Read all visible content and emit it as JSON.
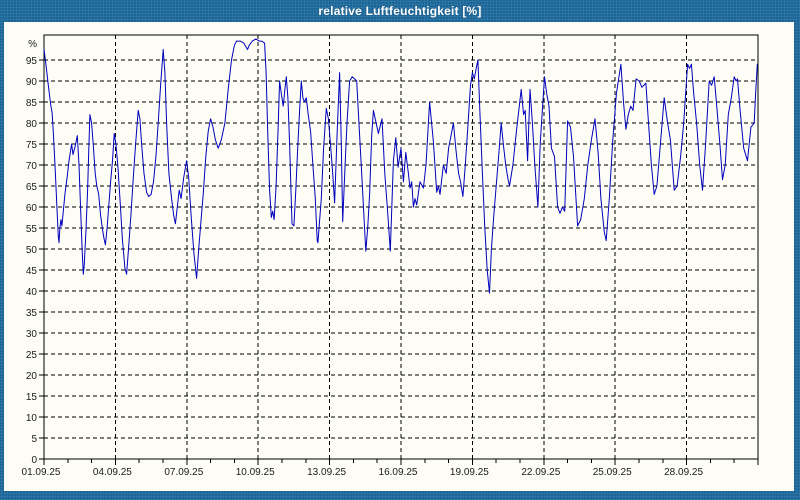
{
  "window": {
    "title": "relative Luftfeuchtigkeit [%]"
  },
  "colors": {
    "titlebar": "#1e6b9f",
    "title_text": "#ffffff",
    "content_background": "#fdfdf6",
    "series_line": "#0000bd",
    "gridline": "#000000",
    "frame": "#000000",
    "axis_text": "#1a1a1a"
  },
  "chart_data": {
    "type": "line",
    "title": "relative Luftfeuchtigkeit [%]",
    "xlabel": "",
    "ylabel": "%",
    "ylim": [
      0,
      100
    ],
    "y_ticks": [
      0,
      5,
      10,
      15,
      20,
      25,
      30,
      35,
      40,
      45,
      50,
      55,
      60,
      65,
      70,
      75,
      80,
      85,
      90,
      95
    ],
    "y_unit_label": "%",
    "grid": "dashed",
    "legend": "none",
    "x_range_days": [
      0,
      30
    ],
    "x_tick_days": [
      0,
      3,
      6,
      9,
      12,
      15,
      18,
      21,
      24,
      27
    ],
    "x_tick_labels": [
      "01.09.25",
      "04.09.25",
      "07.09.25",
      "10.09.25",
      "13.09.25",
      "16.09.25",
      "19.09.25",
      "22.09.25",
      "25.09.25",
      "28.09.25"
    ],
    "series": [
      {
        "name": "relative Luftfeuchtigkeit",
        "unit": "%",
        "points": [
          [
            0,
            97.5
          ],
          [
            0.08,
            94
          ],
          [
            0.18,
            89
          ],
          [
            0.29,
            84
          ],
          [
            0.34,
            82.5
          ],
          [
            0.4,
            77
          ],
          [
            0.47,
            69
          ],
          [
            0.54,
            60
          ],
          [
            0.6,
            53
          ],
          [
            0.63,
            51.5
          ],
          [
            0.67,
            55
          ],
          [
            0.71,
            57
          ],
          [
            0.75,
            55.5
          ],
          [
            0.81,
            59
          ],
          [
            0.88,
            63
          ],
          [
            0.97,
            67
          ],
          [
            1.05,
            71
          ],
          [
            1.16,
            75
          ],
          [
            1.22,
            72.5
          ],
          [
            1.31,
            74.5
          ],
          [
            1.4,
            77
          ],
          [
            1.47,
            70
          ],
          [
            1.54,
            59
          ],
          [
            1.6,
            50
          ],
          [
            1.65,
            44
          ],
          [
            1.69,
            46
          ],
          [
            1.76,
            54
          ],
          [
            1.83,
            64
          ],
          [
            1.88,
            73
          ],
          [
            1.93,
            82
          ],
          [
            2,
            80
          ],
          [
            2.08,
            74
          ],
          [
            2.15,
            68
          ],
          [
            2.22,
            65
          ],
          [
            2.3,
            63
          ],
          [
            2.38,
            58
          ],
          [
            2.45,
            55
          ],
          [
            2.52,
            52.5
          ],
          [
            2.58,
            51
          ],
          [
            2.65,
            55
          ],
          [
            2.72,
            60
          ],
          [
            2.8,
            66
          ],
          [
            2.88,
            71
          ],
          [
            2.95,
            77.5
          ],
          [
            3.02,
            75
          ],
          [
            3.1,
            70
          ],
          [
            3.2,
            61
          ],
          [
            3.3,
            52
          ],
          [
            3.4,
            45.5
          ],
          [
            3.47,
            44
          ],
          [
            3.55,
            50
          ],
          [
            3.65,
            58
          ],
          [
            3.75,
            67
          ],
          [
            3.85,
            75
          ],
          [
            3.96,
            83
          ],
          [
            4.03,
            81
          ],
          [
            4.1,
            75
          ],
          [
            4.2,
            68
          ],
          [
            4.31,
            63.5
          ],
          [
            4.4,
            62.5
          ],
          [
            4.5,
            63
          ],
          [
            4.6,
            66
          ],
          [
            4.7,
            72
          ],
          [
            4.8,
            80
          ],
          [
            4.9,
            89
          ],
          [
            5.01,
            97.5
          ],
          [
            5.08,
            92
          ],
          [
            5.15,
            80
          ],
          [
            5.25,
            68
          ],
          [
            5.36,
            62
          ],
          [
            5.45,
            58
          ],
          [
            5.52,
            56
          ],
          [
            5.6,
            60
          ],
          [
            5.68,
            64
          ],
          [
            5.76,
            62
          ],
          [
            5.87,
            67
          ],
          [
            5.99,
            71
          ],
          [
            6.08,
            67
          ],
          [
            6.18,
            58
          ],
          [
            6.3,
            49
          ],
          [
            6.41,
            43
          ],
          [
            6.5,
            50
          ],
          [
            6.6,
            57
          ],
          [
            6.69,
            63
          ],
          [
            6.8,
            72
          ],
          [
            6.9,
            78
          ],
          [
            7,
            81
          ],
          [
            7.1,
            79
          ],
          [
            7.2,
            76
          ],
          [
            7.32,
            74
          ],
          [
            7.45,
            76
          ],
          [
            7.6,
            80
          ],
          [
            7.74,
            88
          ],
          [
            7.88,
            95
          ],
          [
            8,
            98.5
          ],
          [
            8.09,
            99.5
          ],
          [
            8.25,
            99.5
          ],
          [
            8.4,
            99
          ],
          [
            8.55,
            97.5
          ],
          [
            8.62,
            98.5
          ],
          [
            8.75,
            99.5
          ],
          [
            8.9,
            100
          ],
          [
            9.05,
            99.5
          ],
          [
            9.15,
            99.5
          ],
          [
            9.27,
            99
          ],
          [
            9.33,
            92
          ],
          [
            9.4,
            78
          ],
          [
            9.48,
            64
          ],
          [
            9.55,
            57.5
          ],
          [
            9.61,
            59
          ],
          [
            9.67,
            57
          ],
          [
            9.75,
            65
          ],
          [
            9.83,
            78
          ],
          [
            9.9,
            90
          ],
          [
            9.97,
            87
          ],
          [
            10.05,
            84
          ],
          [
            10.12,
            88
          ],
          [
            10.18,
            91
          ],
          [
            10.25,
            86
          ],
          [
            10.32,
            75
          ],
          [
            10.42,
            56
          ],
          [
            10.5,
            55.5
          ],
          [
            10.58,
            64
          ],
          [
            10.66,
            74
          ],
          [
            10.74,
            83
          ],
          [
            10.81,
            90
          ],
          [
            10.88,
            86
          ],
          [
            10.95,
            85
          ],
          [
            11.02,
            86
          ],
          [
            11.1,
            82
          ],
          [
            11.2,
            78
          ],
          [
            11.3,
            70
          ],
          [
            11.4,
            62
          ],
          [
            11.48,
            52
          ],
          [
            11.51,
            51.5
          ],
          [
            11.65,
            62
          ],
          [
            11.75,
            74
          ],
          [
            11.86,
            83.5
          ],
          [
            11.95,
            81
          ],
          [
            12.05,
            74
          ],
          [
            12.13,
            68
          ],
          [
            12.21,
            61
          ],
          [
            12.32,
            78
          ],
          [
            12.42,
            92
          ],
          [
            12.49,
            75
          ],
          [
            12.55,
            56.5
          ],
          [
            12.65,
            70
          ],
          [
            12.73,
            80
          ],
          [
            12.84,
            90
          ],
          [
            12.95,
            91
          ],
          [
            13.05,
            90.5
          ],
          [
            13.14,
            90
          ],
          [
            13.25,
            78
          ],
          [
            13.35,
            68
          ],
          [
            13.45,
            57
          ],
          [
            13.52,
            49.5
          ],
          [
            13.6,
            55
          ],
          [
            13.68,
            63
          ],
          [
            13.77,
            77
          ],
          [
            13.84,
            83
          ],
          [
            14.05,
            77.5
          ],
          [
            14.2,
            81
          ],
          [
            14.32,
            68
          ],
          [
            14.45,
            58
          ],
          [
            14.55,
            49.5
          ],
          [
            14.68,
            71
          ],
          [
            14.78,
            76.5
          ],
          [
            14.88,
            69.5
          ],
          [
            15,
            74
          ],
          [
            15.1,
            66
          ],
          [
            15.2,
            73
          ],
          [
            15.31,
            68
          ],
          [
            15.38,
            64.5
          ],
          [
            15.45,
            66
          ],
          [
            15.52,
            60
          ],
          [
            15.59,
            62
          ],
          [
            15.66,
            60.5
          ],
          [
            15.8,
            66
          ],
          [
            15.94,
            64.5
          ],
          [
            16.05,
            70
          ],
          [
            16.2,
            85
          ],
          [
            16.36,
            75.5
          ],
          [
            16.5,
            63.5
          ],
          [
            16.57,
            65
          ],
          [
            16.64,
            63
          ],
          [
            16.78,
            70
          ],
          [
            16.9,
            68
          ],
          [
            17,
            74
          ],
          [
            17.2,
            80
          ],
          [
            17.32,
            73
          ],
          [
            17.42,
            68
          ],
          [
            17.5,
            66
          ],
          [
            17.6,
            62.5
          ],
          [
            17.7,
            70
          ],
          [
            17.82,
            80
          ],
          [
            17.92,
            89
          ],
          [
            18,
            92
          ],
          [
            18.08,
            90.5
          ],
          [
            18.16,
            93
          ],
          [
            18.23,
            95
          ],
          [
            18.32,
            82
          ],
          [
            18.42,
            68
          ],
          [
            18.52,
            55
          ],
          [
            18.62,
            45
          ],
          [
            18.72,
            39.5
          ],
          [
            18.8,
            50
          ],
          [
            18.9,
            58
          ],
          [
            19,
            65
          ],
          [
            19.1,
            72
          ],
          [
            19.21,
            80
          ],
          [
            19.3,
            75
          ],
          [
            19.4,
            70
          ],
          [
            19.5,
            66.5
          ],
          [
            19.56,
            65
          ],
          [
            19.7,
            70
          ],
          [
            19.85,
            78
          ],
          [
            20.05,
            88
          ],
          [
            20.15,
            82
          ],
          [
            20.22,
            83
          ],
          [
            20.32,
            71
          ],
          [
            20.42,
            88
          ],
          [
            20.52,
            80
          ],
          [
            20.62,
            70
          ],
          [
            20.75,
            60
          ],
          [
            20.85,
            75
          ],
          [
            21.03,
            91
          ],
          [
            21.12,
            87
          ],
          [
            21.22,
            84
          ],
          [
            21.32,
            74
          ],
          [
            21.45,
            72
          ],
          [
            21.58,
            60
          ],
          [
            21.68,
            58.5
          ],
          [
            21.78,
            60
          ],
          [
            21.88,
            59
          ],
          [
            22,
            80.5
          ],
          [
            22.12,
            79
          ],
          [
            22.25,
            72
          ],
          [
            22.42,
            55.5
          ],
          [
            22.55,
            57
          ],
          [
            22.7,
            62
          ],
          [
            22.85,
            70
          ],
          [
            23,
            76
          ],
          [
            23.15,
            81
          ],
          [
            23.28,
            73
          ],
          [
            23.4,
            62
          ],
          [
            23.54,
            54
          ],
          [
            23.62,
            52
          ],
          [
            23.75,
            62
          ],
          [
            23.9,
            76
          ],
          [
            24.05,
            87
          ],
          [
            24.24,
            94
          ],
          [
            24.35,
            85
          ],
          [
            24.45,
            78.5
          ],
          [
            24.55,
            82
          ],
          [
            24.65,
            84
          ],
          [
            24.75,
            83
          ],
          [
            24.88,
            90.5
          ],
          [
            25.01,
            90
          ],
          [
            25.12,
            88.5
          ],
          [
            25.29,
            89.5
          ],
          [
            25.4,
            80
          ],
          [
            25.52,
            70
          ],
          [
            25.64,
            63
          ],
          [
            25.75,
            65
          ],
          [
            25.9,
            75
          ],
          [
            26.06,
            86
          ],
          [
            26.2,
            80
          ],
          [
            26.32,
            76
          ],
          [
            26.48,
            64
          ],
          [
            26.6,
            65
          ],
          [
            26.75,
            72
          ],
          [
            26.88,
            80
          ],
          [
            27.04,
            94
          ],
          [
            27.12,
            93
          ],
          [
            27.2,
            94
          ],
          [
            27.3,
            87
          ],
          [
            27.42,
            80
          ],
          [
            27.55,
            70
          ],
          [
            27.67,
            64
          ],
          [
            27.8,
            75
          ],
          [
            27.95,
            90
          ],
          [
            28.05,
            89
          ],
          [
            28.16,
            91
          ],
          [
            28.28,
            83
          ],
          [
            28.4,
            75
          ],
          [
            28.51,
            66.5
          ],
          [
            28.62,
            70
          ],
          [
            28.75,
            82
          ],
          [
            28.88,
            86
          ],
          [
            29,
            91
          ],
          [
            29.08,
            90
          ],
          [
            29.14,
            90.5
          ],
          [
            29.25,
            83
          ],
          [
            29.4,
            74
          ],
          [
            29.56,
            71
          ],
          [
            29.7,
            79
          ],
          [
            29.84,
            80
          ],
          [
            29.9,
            87
          ],
          [
            29.97,
            94
          ]
        ]
      }
    ]
  }
}
